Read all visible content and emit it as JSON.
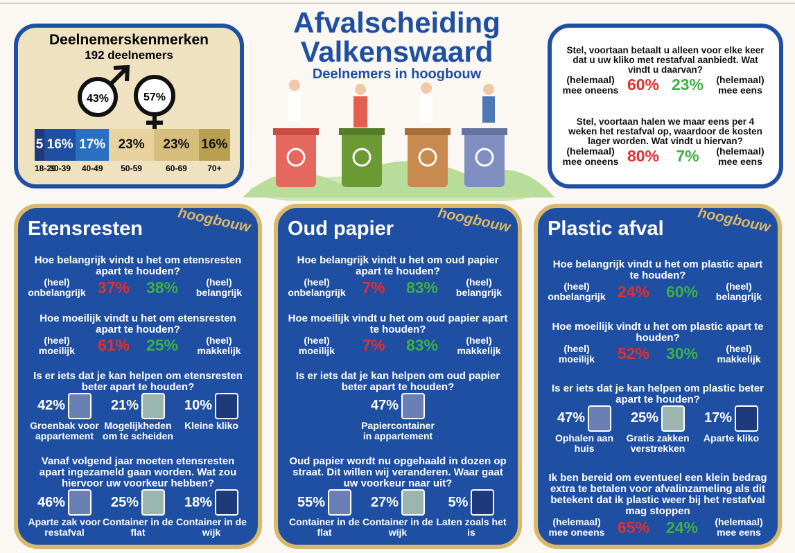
{
  "title": {
    "line1": "Afvalscheiding",
    "line2": "Valkenswaard",
    "subtitle": "Deelnemers in hoogbouw"
  },
  "participants": {
    "title": "Deelnemerskenmerken",
    "count": "192 deelnemers",
    "male": "43%",
    "female": "57%",
    "ages": [
      {
        "value": "5",
        "label": "18-29"
      },
      {
        "value": "16%",
        "label": "30-39"
      },
      {
        "value": "17%",
        "label": "40-49"
      },
      {
        "value": "23%",
        "label": "50-59"
      },
      {
        "value": "23%",
        "label": "60-69"
      },
      {
        "value": "16%",
        "label": "70+"
      }
    ]
  },
  "general": [
    {
      "question": "Stel, voortaan betaalt u alleen voor elke keer dat u uw kliko met restafval aanbiedt. Wat vindt u daarvan?",
      "left_label": "(helemaal) mee oneens",
      "left_value": "60%",
      "right_value": "23%",
      "right_label": "(helemaal) mee eens"
    },
    {
      "question": "Stel, voortaan halen we maar eens per 4 weken het restafval op, waardoor de kosten lager worden. Wat vindt u hiervan?",
      "left_label": "(helemaal) mee oneens",
      "left_value": "80%",
      "right_value": "7%",
      "right_label": "(helemaal) mee eens"
    }
  ],
  "panels": [
    {
      "title": "Etensresten",
      "tag": "hoogbouw",
      "importance": {
        "question": "Hoe belangrijk vindt u het om etensresten apart te houden?",
        "left_label": "(heel) onbelangrijk",
        "left_value": "37%",
        "right_value": "38%",
        "right_label": "(heel) belangrijk"
      },
      "difficulty": {
        "question": "Hoe moeilijk vindt u het om etensresten apart te houden?",
        "left_label": "(heel) moeilijk",
        "left_value": "61%",
        "right_value": "25%",
        "right_label": "(heel) makkelijk"
      },
      "help": {
        "question": "Is er iets dat je kan helpen om etensresten beter apart te houden?",
        "options": [
          {
            "value": "42%",
            "label": "Groenbak voor appartement"
          },
          {
            "value": "21%",
            "label": "Mogelijkheden om te scheiden"
          },
          {
            "value": "10%",
            "label": "Kleine kliko"
          }
        ]
      },
      "preference": {
        "question": "Vanaf volgend jaar moeten etensresten apart ingezameld gaan worden. Wat zou hiervoor uw voorkeur hebben?",
        "options": [
          {
            "value": "46%",
            "label": "Aparte zak voor restafval"
          },
          {
            "value": "25%",
            "label": "Container in de flat"
          },
          {
            "value": "18%",
            "label": "Container in de wijk"
          }
        ]
      }
    },
    {
      "title": "Oud papier",
      "tag": "hoogbouw",
      "importance": {
        "question": "Hoe belangrijk vindt u het om oud papier apart te houden?",
        "left_label": "(heel) onbelangrijk",
        "left_value": "7%",
        "right_value": "83%",
        "right_label": "(heel) belangrijk"
      },
      "difficulty": {
        "question": "Hoe moeilijk vindt u het om oud papier apart te houden?",
        "left_label": "(heel) moeilijk",
        "left_value": "7%",
        "right_value": "83%",
        "right_label": "(heel) makkelijk"
      },
      "help": {
        "question": "Is er iets dat je kan helpen om oud papier beter apart te houden?",
        "options": [
          {
            "value": "47%",
            "label": "Papiercontainer in appartement"
          }
        ]
      },
      "preference": {
        "question": "Oud papier wordt nu opgehaald in dozen op straat. Dit willen wij veranderen. Waar gaat uw voorkeur naar uit?",
        "options": [
          {
            "value": "55%",
            "label": "Container in de flat"
          },
          {
            "value": "27%",
            "label": "Container in de wijk"
          },
          {
            "value": "5%",
            "label": "Laten zoals het is"
          }
        ]
      }
    },
    {
      "title": "Plastic afval",
      "tag": "hoogbouw",
      "importance": {
        "question": "Hoe belangrijk vindt u het om plastic apart te houden?",
        "left_label": "(heel) onbelangrijk",
        "left_value": "24%",
        "right_value": "60%",
        "right_label": "(heel) belangrijk"
      },
      "difficulty": {
        "question": "Hoe moeilijk vindt u het om plastic apart te houden?",
        "left_label": "(heel) moeilijk",
        "left_value": "52%",
        "right_value": "30%",
        "right_label": "(heel) makkelijk"
      },
      "help": {
        "question": "Is er iets dat je kan helpen om plastic beter apart te houden?",
        "options": [
          {
            "value": "47%",
            "label": "Ophalen aan huis"
          },
          {
            "value": "25%",
            "label": "Gratis zakken verstrekken"
          },
          {
            "value": "17%",
            "label": "Aparte kliko"
          }
        ]
      },
      "payment": {
        "question": "Ik ben bereid om eventueel een klein bedrag extra te betalen voor afvalinzameling als dit betekent dat ik plastic weer bij het restafval mag stoppen",
        "left_label": "(helemaal) mee oneens",
        "left_value": "65%",
        "right_value": "24%",
        "right_label": "(helemaal) mee eens"
      }
    }
  ]
}
